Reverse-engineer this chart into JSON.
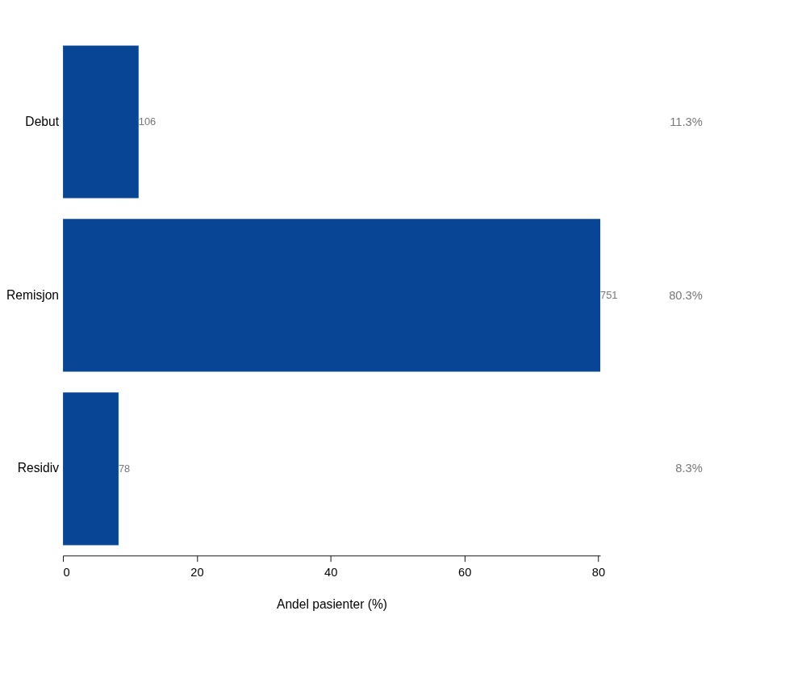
{
  "chart_data": {
    "type": "bar",
    "orientation": "horizontal",
    "categories": [
      "Debut",
      "Remisjon",
      "Residiv"
    ],
    "values": [
      11.3,
      80.3,
      8.3
    ],
    "color": "#084594",
    "value_labels": [
      "11.3%",
      "80.3%",
      "8.3%"
    ],
    "annotations": [
      {
        "text": "106",
        "x": 11.3,
        "y": "Debut"
      },
      {
        "text": "751",
        "x": 80.3,
        "y": "Remisjon"
      },
      {
        "text": "78",
        "x": 8.3,
        "y": "Residiv"
      }
    ],
    "xlabel": "Andel pasienter (%)",
    "xlim": [
      0,
      80.3
    ],
    "xticks": [
      0,
      20,
      40,
      60,
      80
    ],
    "grid": false
  }
}
